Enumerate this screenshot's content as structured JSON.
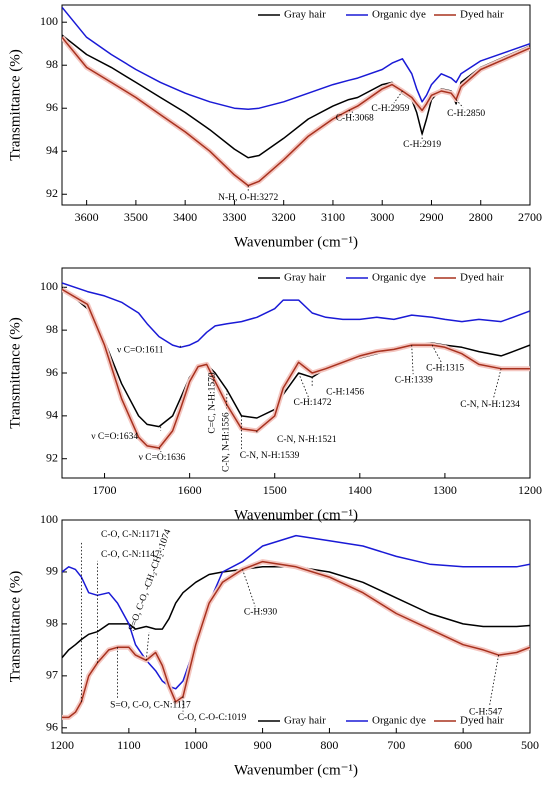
{
  "chart_data": [
    {
      "type": "line",
      "xlabel": "Wavenumber (cm⁻¹)",
      "ylabel": "Transmittance (%)",
      "xlim": [
        3650,
        2700
      ],
      "xticks": [
        3600,
        3500,
        3400,
        3300,
        3200,
        3100,
        3000,
        2900,
        2800,
        2700
      ],
      "ylim": [
        91.5,
        100.8
      ],
      "yticks": [
        92,
        94,
        96,
        98,
        100
      ],
      "legend": "upper right",
      "x": [
        3650,
        3600,
        3550,
        3500,
        3450,
        3400,
        3350,
        3300,
        3272,
        3250,
        3200,
        3150,
        3100,
        3068,
        3050,
        3000,
        2980,
        2959,
        2940,
        2930,
        2919,
        2910,
        2900,
        2880,
        2860,
        2850,
        2840,
        2800,
        2750,
        2700
      ],
      "series": [
        {
          "name": "Gray hair",
          "color": "#000000",
          "values": [
            99.4,
            98.5,
            97.9,
            97.2,
            96.5,
            95.8,
            95.0,
            94.1,
            93.7,
            93.8,
            94.6,
            95.5,
            96.1,
            96.4,
            96.5,
            97.1,
            97.2,
            96.7,
            96.4,
            95.8,
            94.8,
            95.5,
            96.4,
            96.9,
            96.8,
            96.2,
            97.2,
            97.9,
            98.4,
            98.9
          ]
        },
        {
          "name": "Organic dye",
          "color": "#1a1ad6",
          "values": [
            100.7,
            99.3,
            98.5,
            97.8,
            97.2,
            96.7,
            96.3,
            96.0,
            95.95,
            96.0,
            96.3,
            96.7,
            97.1,
            97.3,
            97.4,
            97.8,
            98.1,
            98.3,
            97.6,
            96.9,
            96.3,
            96.6,
            97.1,
            97.6,
            97.4,
            97.2,
            97.6,
            98.2,
            98.6,
            99.0
          ]
        },
        {
          "name": "Dyed hair",
          "color": "#a8321f",
          "values": [
            99.3,
            97.9,
            97.2,
            96.5,
            95.7,
            94.9,
            94.0,
            92.9,
            92.4,
            92.6,
            93.6,
            94.7,
            95.5,
            95.9,
            96.1,
            96.9,
            97.1,
            96.8,
            96.5,
            96.2,
            95.9,
            96.2,
            96.6,
            96.8,
            96.7,
            96.4,
            97.0,
            97.8,
            98.3,
            98.8
          ]
        }
      ],
      "annotations": [
        {
          "text": "N-H, O-H:3272",
          "x": 3272,
          "y": 92.4,
          "color": "#000000"
        },
        {
          "text": "C-H:3068",
          "x": 3068,
          "y": 95.9,
          "color": "#000000"
        },
        {
          "text": "C-H:2959",
          "x": 2959,
          "y": 96.8,
          "color": "#000000"
        },
        {
          "text": "C-H:2919",
          "x": 2919,
          "y": 94.8,
          "color": "#000000"
        },
        {
          "text": "C-H:2850",
          "x": 2850,
          "y": 96.4,
          "color": "#000000"
        }
      ]
    },
    {
      "type": "line",
      "xlabel": "Wavenumber (cm⁻¹)",
      "ylabel": "Transmittance (%)",
      "xlim": [
        1750,
        1200
      ],
      "xticks": [
        1700,
        1600,
        1500,
        1400,
        1300,
        1200
      ],
      "ylim": [
        91.1,
        100.9
      ],
      "yticks": [
        92,
        94,
        96,
        98,
        100
      ],
      "legend": "upper right",
      "x": [
        1750,
        1720,
        1700,
        1680,
        1660,
        1650,
        1636,
        1620,
        1611,
        1600,
        1590,
        1580,
        1570,
        1556,
        1539,
        1521,
        1500,
        1490,
        1472,
        1456,
        1440,
        1420,
        1400,
        1380,
        1360,
        1339,
        1315,
        1300,
        1280,
        1260,
        1234,
        1220,
        1200
      ],
      "series": [
        {
          "name": "Gray hair",
          "color": "#000000",
          "values": [
            100.0,
            99.0,
            97.5,
            95.5,
            94.0,
            93.6,
            93.5,
            94.0,
            94.8,
            95.8,
            96.3,
            96.4,
            96.0,
            95.2,
            94.0,
            93.9,
            94.3,
            95.0,
            96.0,
            95.8,
            96.2,
            96.5,
            96.7,
            96.9,
            97.1,
            97.3,
            97.4,
            97.3,
            97.2,
            97.0,
            96.8,
            97.0,
            97.3
          ]
        },
        {
          "name": "Organic dye",
          "color": "#1a1ad6",
          "values": [
            100.2,
            99.8,
            99.6,
            99.3,
            98.8,
            98.3,
            97.7,
            97.3,
            97.2,
            97.3,
            97.5,
            97.9,
            98.2,
            98.3,
            98.4,
            98.6,
            99.0,
            99.4,
            99.4,
            98.8,
            98.6,
            98.5,
            98.5,
            98.6,
            98.5,
            98.7,
            98.6,
            98.5,
            98.4,
            98.5,
            98.4,
            98.6,
            98.9
          ]
        },
        {
          "name": "Dyed hair",
          "color": "#a8321f",
          "values": [
            99.9,
            99.2,
            97.3,
            94.8,
            93.0,
            92.6,
            92.5,
            93.3,
            94.3,
            95.6,
            96.3,
            96.4,
            95.6,
            94.5,
            93.4,
            93.3,
            94.0,
            95.3,
            96.5,
            96.0,
            96.2,
            96.5,
            96.8,
            97.0,
            97.1,
            97.3,
            97.3,
            97.2,
            96.9,
            96.4,
            96.2,
            96.2,
            96.2
          ]
        }
      ],
      "annotations": [
        {
          "text": "ν C=O:1611",
          "x": 1611,
          "y": 97.2,
          "color": "#1a1ad6"
        },
        {
          "text": "ν C=O:1634",
          "x": 1634,
          "y": 93.5,
          "color": "#000000"
        },
        {
          "text": "ν C=O:1636",
          "x": 1636,
          "y": 92.5,
          "color": "#a8321f"
        },
        {
          "text": "C=C, N-H:1570",
          "x": 1570,
          "y": 96.0,
          "color": "#000000"
        },
        {
          "text": "C-N, N-H:1556",
          "x": 1556,
          "y": 95.2,
          "color": "#000000"
        },
        {
          "text": "C-N, N-H:1539",
          "x": 1539,
          "y": 94.0,
          "color": "#000000"
        },
        {
          "text": "C-N, N-H:1521",
          "x": 1521,
          "y": 93.3,
          "color": "#000000"
        },
        {
          "text": "C-H:1472",
          "x": 1472,
          "y": 96.0,
          "color": "#000000"
        },
        {
          "text": "C-H:1456",
          "x": 1456,
          "y": 95.8,
          "color": "#000000"
        },
        {
          "text": "C-H:1339",
          "x": 1339,
          "y": 97.3,
          "color": "#000000"
        },
        {
          "text": "C-H:1315",
          "x": 1315,
          "y": 97.3,
          "color": "#000000"
        },
        {
          "text": "C-N, N-H:1234",
          "x": 1234,
          "y": 96.2,
          "color": "#000000"
        }
      ]
    },
    {
      "type": "line",
      "xlabel": "Wavenumber (cm⁻¹)",
      "ylabel": "Transmittance (%)",
      "xlim": [
        1200,
        500
      ],
      "xticks": [
        1200,
        1100,
        1000,
        900,
        800,
        700,
        600,
        500
      ],
      "ylim": [
        95.9,
        100
      ],
      "yticks": [
        96,
        97,
        98,
        99,
        100
      ],
      "legend": "lower right",
      "x": [
        1200,
        1190,
        1180,
        1171,
        1160,
        1147,
        1130,
        1117,
        1100,
        1090,
        1074,
        1060,
        1050,
        1040,
        1030,
        1019,
        1000,
        980,
        960,
        930,
        900,
        850,
        800,
        750,
        700,
        650,
        600,
        570,
        547,
        520,
        500
      ],
      "series": [
        {
          "name": "Gray hair",
          "color": "#000000",
          "values": [
            97.35,
            97.5,
            97.6,
            97.7,
            97.8,
            97.85,
            98.0,
            98.0,
            98.0,
            97.9,
            97.95,
            97.9,
            97.9,
            98.1,
            98.4,
            98.6,
            98.8,
            98.95,
            99.0,
            99.05,
            99.1,
            99.1,
            99.0,
            98.8,
            98.5,
            98.2,
            98.0,
            97.95,
            97.95,
            97.95,
            97.97
          ]
        },
        {
          "name": "Organic dye",
          "color": "#1a1ad6",
          "values": [
            99.0,
            99.1,
            99.05,
            98.9,
            98.6,
            98.55,
            98.6,
            98.4,
            98.0,
            97.6,
            97.3,
            97.1,
            96.9,
            96.8,
            96.75,
            96.9,
            97.6,
            98.4,
            99.0,
            99.2,
            99.5,
            99.7,
            99.6,
            99.5,
            99.3,
            99.15,
            99.1,
            99.1,
            99.1,
            99.1,
            99.15
          ]
        },
        {
          "name": "Dyed hair",
          "color": "#a8321f",
          "values": [
            96.2,
            96.2,
            96.3,
            96.5,
            97.0,
            97.25,
            97.5,
            97.55,
            97.55,
            97.4,
            97.3,
            97.45,
            97.2,
            96.8,
            96.5,
            96.6,
            97.6,
            98.4,
            98.8,
            99.05,
            99.2,
            99.1,
            98.9,
            98.6,
            98.2,
            97.9,
            97.6,
            97.5,
            97.4,
            97.45,
            97.55
          ]
        }
      ],
      "annotations": [
        {
          "text": "C-O, C-N:1171",
          "x": 1171,
          "y": 96.5,
          "color": "#000000"
        },
        {
          "text": "C-O, C-N:1147",
          "x": 1147,
          "y": 97.25,
          "color": "#000000"
        },
        {
          "text": "S=O, C-O, -CH₂-CH₂-:1074",
          "x": 1074,
          "y": 97.3,
          "color": "#000000"
        },
        {
          "text": "C-H:930",
          "x": 930,
          "y": 99.05,
          "color": "#000000"
        },
        {
          "text": "S=O, C-O, C-N:1117",
          "x": 1117,
          "y": 97.55,
          "color": "#000000"
        },
        {
          "text": "C-O, C-O-C:1019",
          "x": 1019,
          "y": 96.6,
          "color": "#000000"
        },
        {
          "text": "C-H:547",
          "x": 547,
          "y": 97.4,
          "color": "#000000"
        }
      ]
    }
  ]
}
